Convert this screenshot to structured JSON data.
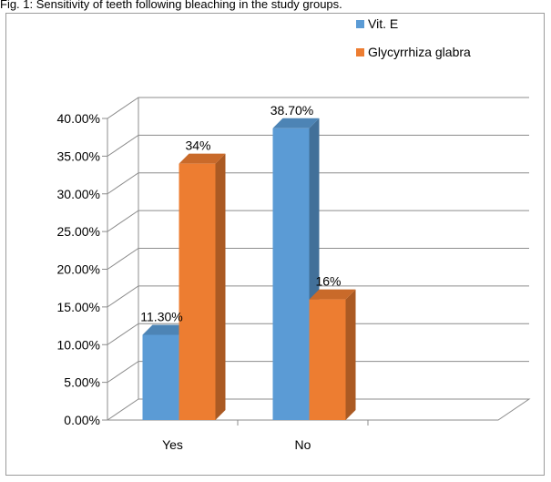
{
  "caption": "Fig. 1: Sensitivity of teeth following bleaching in the study groups.",
  "chart_data": {
    "type": "bar",
    "categories": [
      "Yes",
      "No"
    ],
    "series": [
      {
        "name": "Vit. E",
        "values": [
          11.3,
          38.7
        ],
        "labels": [
          "11.30%",
          "38.70%"
        ],
        "color": "#5b9bd5"
      },
      {
        "name": "Glycyrrhiza glabra",
        "values": [
          34,
          16
        ],
        "labels": [
          "34%",
          "16%"
        ],
        "color": "#ed7d31"
      }
    ],
    "ylim": [
      0,
      40
    ],
    "yticks": [
      "0.00%",
      "5.00%",
      "10.00%",
      "15.00%",
      "20.00%",
      "25.00%",
      "30.00%",
      "35.00%",
      "40.00%"
    ],
    "grid": true,
    "legend": "top-right",
    "style": "3d-clustered-column"
  }
}
